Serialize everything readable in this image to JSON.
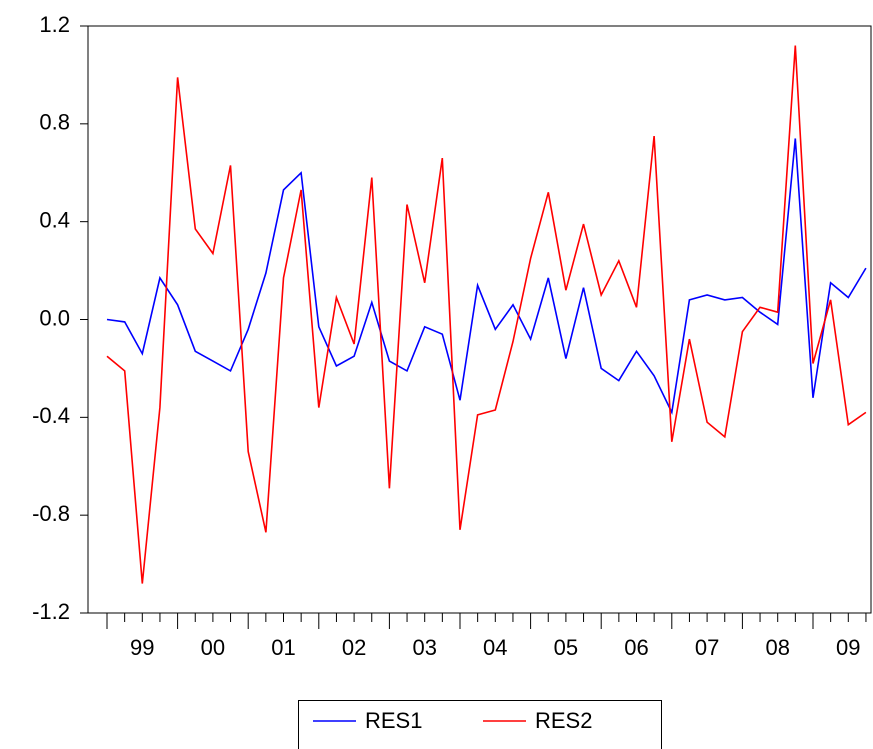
{
  "chart_data": {
    "type": "line",
    "categories": [
      null,
      null,
      "99",
      null,
      null,
      null,
      "00",
      null,
      null,
      null,
      "01",
      null,
      null,
      null,
      "02",
      null,
      null,
      null,
      "03",
      null,
      null,
      null,
      "04",
      null,
      null,
      null,
      "05",
      null,
      null,
      null,
      "06",
      null,
      null,
      null,
      "07",
      null,
      null,
      null,
      "08",
      null,
      null,
      null,
      "09",
      null
    ],
    "series": [
      {
        "name": "RES1",
        "color": "#0000ff",
        "values": [
          0.0,
          -0.01,
          -0.14,
          0.17,
          0.06,
          -0.13,
          -0.17,
          -0.21,
          -0.04,
          0.19,
          0.53,
          0.6,
          -0.03,
          -0.19,
          -0.15,
          0.07,
          -0.17,
          -0.21,
          -0.03,
          -0.06,
          -0.33,
          0.14,
          -0.04,
          0.06,
          -0.08,
          0.17,
          -0.16,
          0.13,
          -0.2,
          -0.25,
          -0.13,
          -0.23,
          -0.38,
          0.08,
          0.1,
          0.08,
          0.09,
          0.03,
          -0.02,
          0.74,
          -0.32,
          0.15,
          0.09,
          0.21
        ]
      },
      {
        "name": "RES2",
        "color": "#ff0000",
        "values": [
          -0.15,
          -0.21,
          -1.08,
          -0.36,
          0.99,
          0.37,
          0.27,
          0.63,
          -0.54,
          -0.87,
          0.17,
          0.53,
          -0.36,
          0.09,
          -0.1,
          0.58,
          -0.69,
          0.47,
          0.15,
          0.66,
          -0.86,
          -0.39,
          -0.37,
          -0.09,
          0.25,
          0.52,
          0.12,
          0.39,
          0.1,
          0.24,
          0.05,
          0.75,
          -0.5,
          -0.08,
          -0.42,
          -0.48,
          -0.05,
          0.05,
          0.03,
          1.12,
          -0.18,
          0.08,
          -0.43,
          -0.38
        ]
      }
    ],
    "ylim": [
      -1.2,
      1.2
    ],
    "yticks": [
      -1.2,
      -0.8,
      -0.4,
      {
        "value": 0,
        "label": "0.0"
      },
      0.4,
      0.8,
      1.2
    ],
    "grid": false,
    "legend": "bottom"
  }
}
